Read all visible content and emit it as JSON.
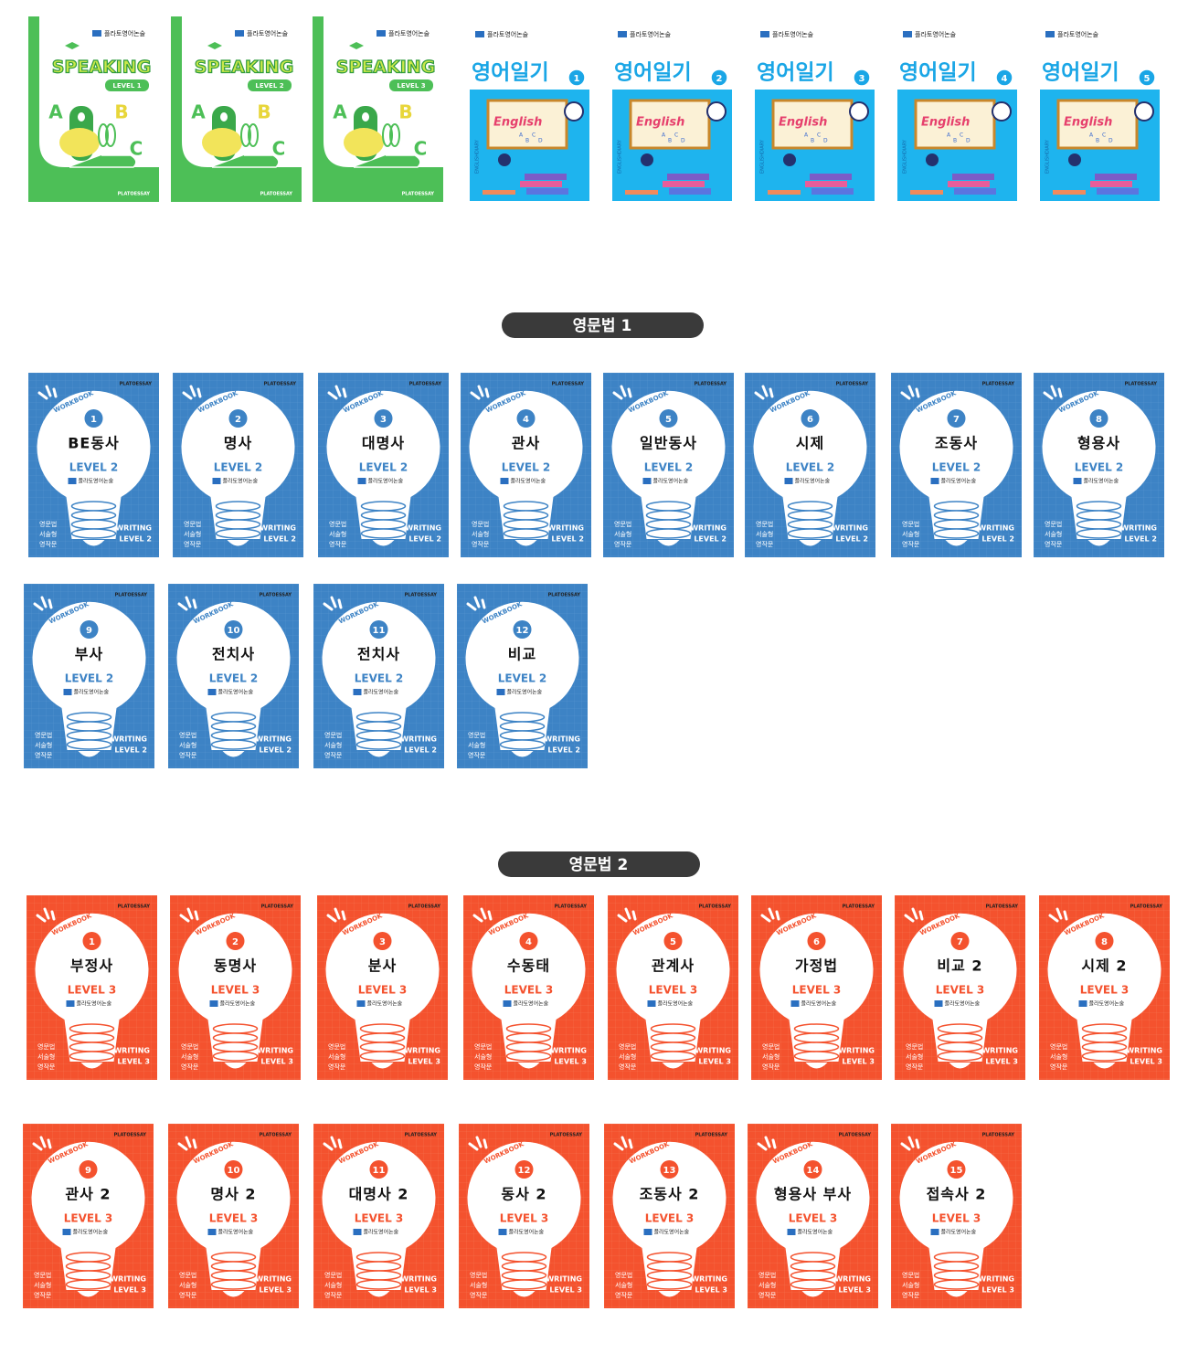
{
  "speaking": {
    "brand": "플라토영어논술",
    "brand_en": "PLATOESSAY",
    "title": "SPEAKING",
    "letters": [
      "A",
      "B",
      "C"
    ],
    "books": [
      {
        "level": "LEVEL 1"
      },
      {
        "level": "LEVEL 2"
      },
      {
        "level": "LEVEL 3"
      }
    ]
  },
  "diary": {
    "brand": "플라토영어논술",
    "title": "영어일기",
    "board": "English",
    "board_letters": [
      "A",
      "B",
      "C",
      "D"
    ],
    "side": "ENGLISHDIARY",
    "books": [
      1,
      2,
      3,
      4,
      5
    ]
  },
  "grammar1": {
    "label": "영문법 1",
    "brand_en": "PLATOESSAY",
    "workbook": "WORKBOOK",
    "brand": "플라토영어논술",
    "level": "LEVEL 2",
    "tags": [
      "영문법",
      "서술형",
      "영작문"
    ],
    "writing": "WRITING",
    "writing_level": "LEVEL 2",
    "books": [
      {
        "number": 1,
        "title": "BE동사"
      },
      {
        "number": 2,
        "title": "명사"
      },
      {
        "number": 3,
        "title": "대명사"
      },
      {
        "number": 4,
        "title": "관사"
      },
      {
        "number": 5,
        "title": "일반동사"
      },
      {
        "number": 6,
        "title": "시제"
      },
      {
        "number": 7,
        "title": "조동사"
      },
      {
        "number": 8,
        "title": "형용사"
      },
      {
        "number": 9,
        "title": "부사"
      },
      {
        "number": 10,
        "title": "전치사"
      },
      {
        "number": 11,
        "title": "전치사"
      },
      {
        "number": 12,
        "title": "비교"
      }
    ]
  },
  "grammar2": {
    "label": "영문법 2",
    "brand_en": "PLATOESSAY",
    "workbook": "WORKBOOK",
    "brand": "플라토영어논술",
    "level": "LEVEL 3",
    "tags": [
      "영문법",
      "서술형",
      "영작문"
    ],
    "writing": "WRITING",
    "writing_level": "LEVEL 3",
    "books": [
      {
        "number": 1,
        "title": "부정사"
      },
      {
        "number": 2,
        "title": "동명사"
      },
      {
        "number": 3,
        "title": "분사"
      },
      {
        "number": 4,
        "title": "수동태"
      },
      {
        "number": 5,
        "title": "관계사"
      },
      {
        "number": 6,
        "title": "가정법"
      },
      {
        "number": 7,
        "title": "비교 2"
      },
      {
        "number": 8,
        "title": "시제 2"
      },
      {
        "number": 9,
        "title": "관사 2"
      },
      {
        "number": 10,
        "title": "명사 2"
      },
      {
        "number": 11,
        "title": "대명사 2"
      },
      {
        "number": 12,
        "title": "동사 2"
      },
      {
        "number": 13,
        "title": "조동사 2"
      },
      {
        "number": 14,
        "title": "형용사 부사"
      },
      {
        "number": 15,
        "title": "접속사 2"
      }
    ]
  }
}
